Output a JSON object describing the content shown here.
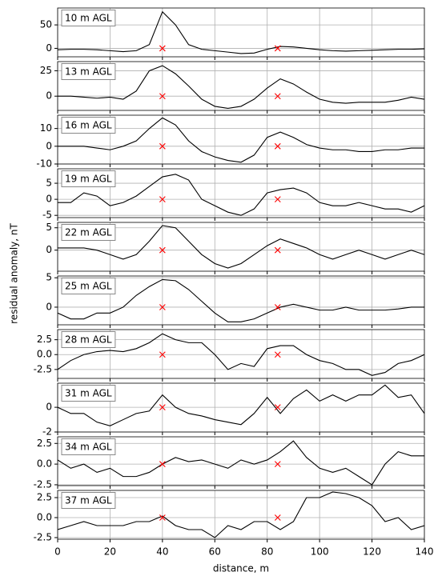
{
  "y_label": "residual anomaly, nT",
  "chart_data": [
    {
      "type": "line",
      "annotation": "10 m AGL",
      "xlim": [
        0,
        140
      ],
      "xticks": [
        0,
        20,
        40,
        60,
        80,
        100,
        120,
        140
      ],
      "ylim": [
        -18,
        86
      ],
      "yticks": [
        0,
        50
      ],
      "grid": true,
      "color": "#000000",
      "x": [
        0,
        5,
        10,
        15,
        20,
        25,
        30,
        35,
        40,
        45,
        50,
        55,
        60,
        65,
        70,
        75,
        80,
        85,
        90,
        95,
        100,
        105,
        110,
        115,
        120,
        125,
        130,
        135,
        140
      ],
      "values": [
        -3,
        -2,
        -2,
        -3,
        -5,
        -7,
        -5,
        8,
        78,
        50,
        8,
        -2,
        -5,
        -8,
        -11,
        -10,
        -2,
        4,
        3,
        0,
        -3,
        -5,
        -6,
        -5,
        -4,
        -3,
        -2,
        -2,
        -1
      ],
      "markers": {
        "x": [
          40,
          84
        ],
        "values": [
          0,
          0
        ],
        "color": "#ff0000"
      }
    },
    {
      "type": "line",
      "annotation": "13 m AGL",
      "xlim": [
        0,
        140
      ],
      "xticks": [
        0,
        20,
        40,
        60,
        80,
        100,
        120,
        140
      ],
      "ylim": [
        -14,
        34
      ],
      "yticks": [
        0,
        25
      ],
      "grid": true,
      "color": "#000000",
      "x": [
        0,
        5,
        10,
        15,
        20,
        25,
        30,
        35,
        40,
        45,
        50,
        55,
        60,
        65,
        70,
        75,
        80,
        85,
        90,
        95,
        100,
        105,
        110,
        115,
        120,
        125,
        130,
        135,
        140
      ],
      "values": [
        0,
        0,
        -1,
        -2,
        -1,
        -3,
        5,
        25,
        30,
        22,
        10,
        -3,
        -10,
        -12,
        -10,
        -3,
        8,
        17,
        12,
        4,
        -3,
        -6,
        -7,
        -6,
        -6,
        -6,
        -4,
        -1,
        -3
      ],
      "markers": {
        "x": [
          40,
          84
        ],
        "values": [
          0,
          0
        ],
        "color": "#ff0000"
      }
    },
    {
      "type": "line",
      "annotation": "16 m AGL",
      "xlim": [
        0,
        140
      ],
      "xticks": [
        0,
        20,
        40,
        60,
        80,
        100,
        120,
        140
      ],
      "ylim": [
        -10,
        17.5
      ],
      "yticks": [
        -10,
        0,
        10
      ],
      "grid": true,
      "color": "#000000",
      "x": [
        0,
        5,
        10,
        15,
        20,
        25,
        30,
        35,
        40,
        45,
        50,
        55,
        60,
        65,
        70,
        75,
        80,
        85,
        90,
        95,
        100,
        105,
        110,
        115,
        120,
        125,
        130,
        135,
        140
      ],
      "values": [
        0,
        0,
        0,
        -1,
        -2,
        0,
        3,
        10,
        16,
        12,
        3,
        -3,
        -6,
        -8,
        -9,
        -5,
        5,
        8,
        5,
        1,
        -1,
        -2,
        -2,
        -3,
        -3,
        -2,
        -2,
        -1,
        -1
      ],
      "markers": {
        "x": [
          40,
          84
        ],
        "values": [
          0,
          0
        ],
        "color": "#ff0000"
      }
    },
    {
      "type": "line",
      "annotation": "19 m AGL",
      "xlim": [
        0,
        140
      ],
      "xticks": [
        0,
        20,
        40,
        60,
        80,
        100,
        120,
        140
      ],
      "ylim": [
        -5.7,
        9.5
      ],
      "yticks": [
        -5,
        0,
        5
      ],
      "grid": true,
      "color": "#000000",
      "x": [
        0,
        5,
        10,
        15,
        20,
        25,
        30,
        35,
        40,
        45,
        50,
        55,
        60,
        65,
        70,
        75,
        80,
        85,
        90,
        95,
        100,
        105,
        110,
        115,
        120,
        125,
        130,
        135,
        140
      ],
      "values": [
        -1,
        -1,
        2,
        1,
        -2,
        -1,
        1,
        4,
        7,
        7.8,
        6,
        0,
        -2,
        -4,
        -5,
        -3,
        2,
        3,
        3.5,
        2,
        -1,
        -2,
        -2,
        -1,
        -2,
        -3,
        -3,
        -4,
        -2
      ],
      "markers": {
        "x": [
          40,
          84
        ],
        "values": [
          0,
          0
        ],
        "color": "#ff0000"
      }
    },
    {
      "type": "line",
      "annotation": "22 m AGL",
      "xlim": [
        0,
        140
      ],
      "xticks": [
        0,
        20,
        40,
        60,
        80,
        100,
        120,
        140
      ],
      "ylim": [
        -4.7,
        6.2
      ],
      "yticks": [
        0,
        5
      ],
      "grid": true,
      "color": "#000000",
      "x": [
        0,
        5,
        10,
        15,
        20,
        25,
        30,
        35,
        40,
        45,
        50,
        55,
        60,
        65,
        70,
        75,
        80,
        85,
        90,
        95,
        100,
        105,
        110,
        115,
        120,
        125,
        130,
        135,
        140
      ],
      "values": [
        0.5,
        0.5,
        0.5,
        0,
        -1,
        -2,
        -1,
        2,
        5.5,
        5,
        2,
        -1,
        -3,
        -4,
        -3,
        -1,
        1,
        2.5,
        1.5,
        0.5,
        -1,
        -2,
        -1,
        0,
        -1,
        -2,
        -1,
        0,
        -1
      ],
      "markers": {
        "x": [
          40,
          84
        ],
        "values": [
          0,
          0
        ],
        "color": "#ff0000"
      }
    },
    {
      "type": "line",
      "annotation": "25 m AGL",
      "xlim": [
        0,
        140
      ],
      "xticks": [
        0,
        20,
        40,
        60,
        80,
        100,
        120,
        140
      ],
      "ylim": [
        -3,
        5.3
      ],
      "yticks": [
        0,
        5
      ],
      "grid": true,
      "color": "#000000",
      "x": [
        0,
        5,
        10,
        15,
        20,
        25,
        30,
        35,
        40,
        45,
        50,
        55,
        60,
        65,
        70,
        75,
        80,
        85,
        90,
        95,
        100,
        105,
        110,
        115,
        120,
        125,
        130,
        135,
        140
      ],
      "values": [
        -1,
        -2,
        -2,
        -1,
        -1,
        0,
        2,
        3.5,
        4.7,
        4.5,
        3,
        1,
        -1,
        -2.5,
        -2.5,
        -2,
        -1,
        0,
        0.5,
        0,
        -0.5,
        -0.5,
        0,
        -0.5,
        -0.5,
        -0.5,
        -0.3,
        0,
        0
      ],
      "markers": {
        "x": [
          40,
          84
        ],
        "values": [
          0,
          0
        ],
        "color": "#ff0000"
      }
    },
    {
      "type": "line",
      "annotation": "28 m AGL",
      "xlim": [
        0,
        140
      ],
      "xticks": [
        0,
        20,
        40,
        60,
        80,
        100,
        120,
        140
      ],
      "ylim": [
        -4,
        4.2
      ],
      "yticks": [
        -2.5,
        {
          "value": 0,
          "label": "0.0"
        },
        2.5
      ],
      "grid": true,
      "color": "#000000",
      "x": [
        0,
        5,
        10,
        15,
        20,
        25,
        30,
        35,
        40,
        45,
        50,
        55,
        60,
        65,
        70,
        75,
        80,
        85,
        90,
        95,
        100,
        105,
        110,
        115,
        120,
        125,
        130,
        135,
        140
      ],
      "values": [
        -2.5,
        -1,
        0,
        0.5,
        0.7,
        0.5,
        1,
        2,
        3.5,
        2.5,
        2,
        2,
        0,
        -2.5,
        -1.5,
        -2,
        1,
        1.5,
        1.5,
        0,
        -1,
        -1.5,
        -2.5,
        -2.5,
        -3.5,
        -3,
        -1.5,
        -1,
        0
      ],
      "markers": {
        "x": [
          40,
          84
        ],
        "values": [
          0,
          0
        ],
        "color": "#ff0000"
      }
    },
    {
      "type": "line",
      "annotation": "31 m AGL",
      "xlim": [
        0,
        140
      ],
      "xticks": [
        0,
        20,
        40,
        60,
        80,
        100,
        120,
        140
      ],
      "ylim": [
        -2,
        1.95
      ],
      "yticks": [
        -2,
        0
      ],
      "grid": true,
      "color": "#000000",
      "x": [
        0,
        5,
        10,
        15,
        20,
        25,
        30,
        35,
        40,
        45,
        50,
        55,
        60,
        65,
        70,
        75,
        80,
        85,
        90,
        95,
        100,
        105,
        110,
        115,
        120,
        125,
        130,
        135,
        140
      ],
      "values": [
        0,
        -0.5,
        -0.5,
        -1.2,
        -1.5,
        -1,
        -0.5,
        -0.3,
        1,
        0,
        -0.5,
        -0.7,
        -1,
        -1.2,
        -1.4,
        -0.5,
        0.8,
        -0.5,
        0.7,
        1.4,
        0.5,
        1,
        0.5,
        1,
        1,
        1.8,
        0.8,
        1,
        -0.5
      ],
      "markers": {
        "x": [
          40,
          84
        ],
        "values": [
          0,
          0
        ],
        "color": "#ff0000"
      }
    },
    {
      "type": "line",
      "annotation": "34 m AGL",
      "xlim": [
        0,
        140
      ],
      "xticks": [
        0,
        20,
        40,
        60,
        80,
        100,
        120,
        140
      ],
      "ylim": [
        -2.6,
        3.3
      ],
      "yticks": [
        -2.5,
        {
          "value": 0,
          "label": "0.0"
        },
        2.5
      ],
      "grid": true,
      "color": "#000000",
      "x": [
        0,
        5,
        10,
        15,
        20,
        25,
        30,
        35,
        40,
        45,
        50,
        55,
        60,
        65,
        70,
        75,
        80,
        85,
        90,
        95,
        100,
        105,
        110,
        115,
        120,
        125,
        130,
        135,
        140
      ],
      "values": [
        0.5,
        -0.5,
        0,
        -1,
        -0.5,
        -1.5,
        -1.5,
        -1,
        0,
        0.8,
        0.3,
        0.5,
        0,
        -0.5,
        0.5,
        0,
        0.5,
        1.5,
        2.8,
        0.8,
        -0.5,
        -1,
        -0.5,
        -1.5,
        -2.5,
        0,
        1.5,
        1,
        1
      ],
      "markers": {
        "x": [
          40,
          84
        ],
        "values": [
          0,
          0
        ],
        "color": "#ff0000"
      }
    },
    {
      "type": "line",
      "annotation": "37 m AGL",
      "xlim": [
        0,
        140
      ],
      "xticks": [
        0,
        20,
        40,
        60,
        80,
        100,
        120,
        140
      ],
      "ylim": [
        -2.7,
        3.4
      ],
      "yticks": [
        -2.5,
        {
          "value": 0,
          "label": "0.0"
        },
        2.5
      ],
      "grid": true,
      "color": "#000000",
      "x_label": "distance, m",
      "x": [
        0,
        5,
        10,
        15,
        20,
        25,
        30,
        35,
        40,
        45,
        50,
        55,
        60,
        65,
        70,
        75,
        80,
        85,
        90,
        95,
        100,
        105,
        110,
        115,
        120,
        125,
        130,
        135,
        140
      ],
      "values": [
        -1.5,
        -1,
        -0.5,
        -1,
        -1,
        -1,
        -0.5,
        -0.5,
        0.2,
        -1,
        -1.5,
        -1.5,
        -2.5,
        -1,
        -1.5,
        -0.5,
        -0.5,
        -1.5,
        -0.5,
        2.5,
        2.5,
        3.2,
        3,
        2.5,
        1.5,
        -0.5,
        0,
        -1.5,
        -1
      ],
      "markers": {
        "x": [
          40,
          84
        ],
        "values": [
          0,
          0
        ],
        "color": "#ff0000"
      }
    }
  ]
}
